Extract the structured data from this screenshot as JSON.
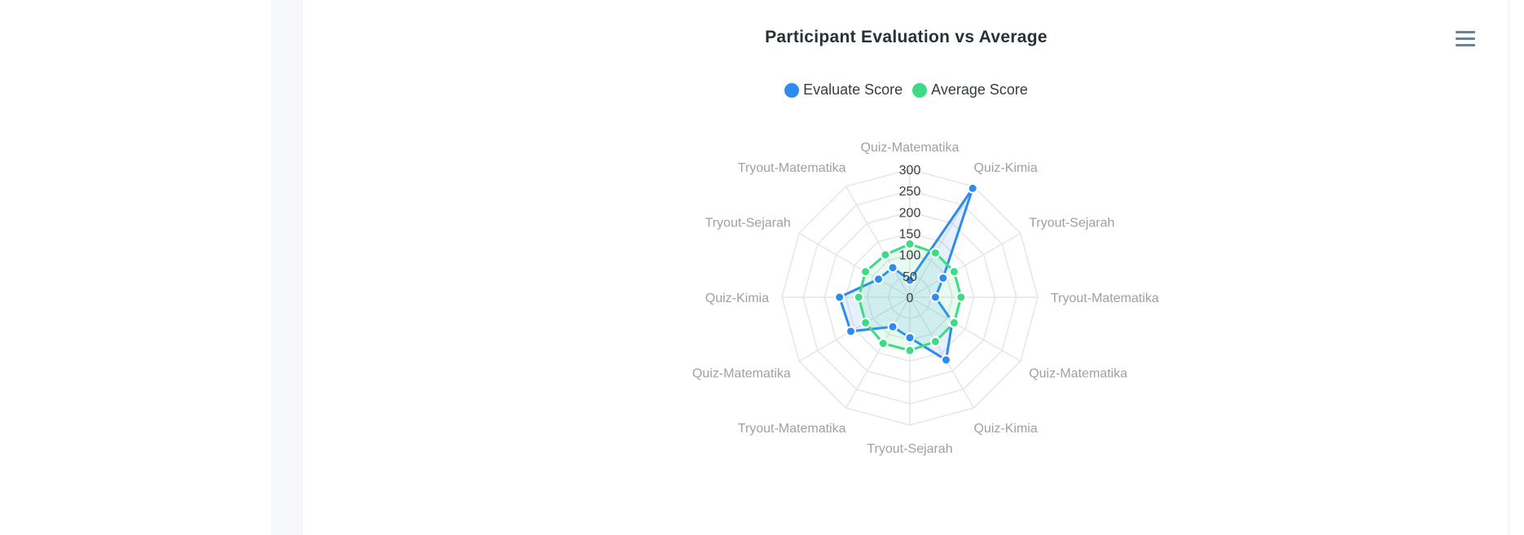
{
  "chart_title": "Participant Evaluation vs Average",
  "menu_icon": "hamburger-menu-icon",
  "colors": {
    "evaluate": "#2e8bf0",
    "average": "#3ddc84",
    "grid": "#e6e6e6",
    "axis_label": "#a0a0a0"
  },
  "legend": [
    {
      "label": "Evaluate Score",
      "color": "#2e8bf0"
    },
    {
      "label": "Average Score",
      "color": "#3ddc84"
    }
  ],
  "chart_data": {
    "type": "radar",
    "title": "Participant Evaluation vs Average",
    "categories": [
      "Quiz-Matematika",
      "Quiz-Kimia",
      "Tryout-Sejarah",
      "Tryout-Matematika",
      "Quiz-Matematika",
      "Quiz-Kimia",
      "Tryout-Sejarah",
      "Tryout-Matematika",
      "Quiz-Matematika",
      "Quiz-Kimia",
      "Tryout-Sejarah",
      "Tryout-Matematika"
    ],
    "ticks": [
      "0",
      "50",
      "100",
      "150",
      "200",
      "250",
      "300"
    ],
    "ylim": [
      0,
      300
    ],
    "grid": true,
    "legend_position": "top-center",
    "series": [
      {
        "name": "Evaluate Score",
        "values": [
          40,
          295,
          90,
          60,
          115,
          170,
          95,
          80,
          160,
          165,
          85,
          80
        ]
      },
      {
        "name": "Average Score",
        "values": [
          125,
          120,
          120,
          120,
          120,
          120,
          125,
          125,
          120,
          120,
          120,
          115
        ]
      }
    ]
  }
}
